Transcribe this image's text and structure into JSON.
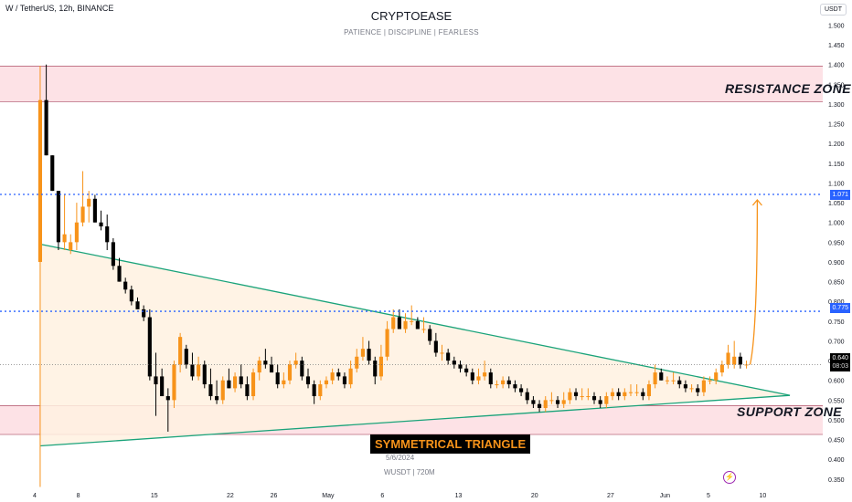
{
  "header": {
    "symbol": "W / TetherUS, 12h, BINANCE",
    "title": "CRYPTOEASE",
    "subtitle": "PATIENCE | DISCIPLINE | FEARLESS",
    "currency": "USDT"
  },
  "watermark": {
    "pattern": "SYMMETRICAL TRIANGLE",
    "date": "5/6/2024",
    "info": "WUSDT | 720M"
  },
  "zones": {
    "resistance_label": "RESISTANCE ZONE",
    "support_label": "SUPPORT ZONE"
  },
  "price_tags": {
    "target": "1.071",
    "breakout": "0.775",
    "current": "0.640",
    "countdown": "08:03"
  },
  "icons": {
    "flash": "lightning-icon"
  },
  "colors": {
    "bull": "#f7931a",
    "bear": "#000000",
    "zone_fill": "#fde2e6",
    "triangle_line": "#1aa37a",
    "triangle_fill": "#fff1e0",
    "level_line": "#2962ff",
    "arrow": "#f7931a"
  },
  "chart_data": {
    "type": "candlestick",
    "title": "CRYPTOEASE",
    "x_ticks": [
      "4",
      "8",
      "15",
      "22",
      "26",
      "May",
      "6",
      "13",
      "20",
      "27",
      "Jun",
      "5",
      "10"
    ],
    "x_tick_days": [
      0,
      4,
      11,
      18,
      22,
      27,
      32,
      39,
      46,
      53,
      58,
      62,
      67
    ],
    "x_range_days": [
      0,
      70
    ],
    "y_ticks": [
      0.35,
      0.4,
      0.45,
      0.5,
      0.55,
      0.6,
      0.65,
      0.7,
      0.75,
      0.8,
      0.85,
      0.9,
      0.95,
      1.0,
      1.05,
      1.1,
      1.15,
      1.2,
      1.25,
      1.3,
      1.35,
      1.4,
      1.45,
      1.5
    ],
    "ylim": [
      0.315,
      1.545
    ],
    "resistance_zone": [
      1.306,
      1.396
    ],
    "support_zone": [
      0.463,
      0.536
    ],
    "levels": [
      1.071,
      0.775
    ],
    "current_price": 0.64,
    "triangle": {
      "upper": [
        [
          0.5,
          0.945
        ],
        [
          69.5,
          0.562
        ]
      ],
      "lower": [
        [
          0.5,
          0.434
        ],
        [
          69.5,
          0.562
        ]
      ]
    },
    "projection_target": 1.071,
    "candles": [
      [
        0.9,
        1.31,
        1.397,
        0.33,
        1.31
      ],
      [
        1.31,
        1.31,
        1.4,
        1.17,
        1.17
      ],
      [
        1.17,
        1.17,
        1.17,
        1.08,
        1.08
      ],
      [
        1.08,
        1.08,
        1.08,
        0.93,
        0.95
      ],
      [
        0.95,
        1.07,
        1.07,
        0.93,
        0.97
      ],
      [
        0.93,
        0.93,
        0.97,
        0.92,
        0.95
      ],
      [
        0.95,
        1.03,
        1.05,
        0.93,
        1.0
      ],
      [
        1.0,
        1.06,
        1.13,
        0.99,
        1.04
      ],
      [
        1.04,
        1.07,
        1.08,
        1.0,
        1.06
      ],
      [
        1.06,
        1.06,
        1.07,
        1.0,
        1.0
      ],
      [
        1.0,
        1.02,
        1.03,
        0.98,
        0.99
      ],
      [
        0.99,
        0.99,
        1.02,
        0.93,
        0.95
      ],
      [
        0.95,
        0.95,
        0.96,
        0.88,
        0.89
      ],
      [
        0.89,
        0.89,
        0.91,
        0.85,
        0.85
      ],
      [
        0.85,
        0.85,
        0.86,
        0.82,
        0.83
      ],
      [
        0.83,
        0.83,
        0.84,
        0.79,
        0.8
      ],
      [
        0.8,
        0.8,
        0.81,
        0.78,
        0.78
      ],
      [
        0.78,
        0.78,
        0.79,
        0.75,
        0.76
      ],
      [
        0.76,
        0.76,
        0.78,
        0.6,
        0.61
      ],
      [
        0.61,
        0.62,
        0.67,
        0.51,
        0.59
      ],
      [
        0.61,
        0.61,
        0.63,
        0.56,
        0.56
      ],
      [
        0.56,
        0.56,
        0.58,
        0.47,
        0.55
      ],
      [
        0.55,
        0.64,
        0.65,
        0.53,
        0.64
      ],
      [
        0.64,
        0.71,
        0.72,
        0.62,
        0.71
      ],
      [
        0.68,
        0.68,
        0.69,
        0.63,
        0.64
      ],
      [
        0.64,
        0.66,
        0.67,
        0.6,
        0.61
      ],
      [
        0.61,
        0.61,
        0.66,
        0.6,
        0.64
      ],
      [
        0.64,
        0.64,
        0.65,
        0.58,
        0.59
      ],
      [
        0.59,
        0.62,
        0.63,
        0.55,
        0.56
      ],
      [
        0.56,
        0.58,
        0.6,
        0.54,
        0.55
      ],
      [
        0.55,
        0.6,
        0.61,
        0.54,
        0.6
      ],
      [
        0.6,
        0.61,
        0.63,
        0.58,
        0.58
      ],
      [
        0.58,
        0.61,
        0.62,
        0.57,
        0.61
      ],
      [
        0.61,
        0.63,
        0.64,
        0.58,
        0.59
      ],
      [
        0.59,
        0.59,
        0.61,
        0.55,
        0.56
      ],
      [
        0.56,
        0.62,
        0.63,
        0.55,
        0.62
      ],
      [
        0.62,
        0.65,
        0.66,
        0.6,
        0.65
      ],
      [
        0.65,
        0.67,
        0.68,
        0.63,
        0.64
      ],
      [
        0.64,
        0.65,
        0.66,
        0.62,
        0.62
      ],
      [
        0.62,
        0.62,
        0.64,
        0.58,
        0.59
      ],
      [
        0.59,
        0.61,
        0.62,
        0.58,
        0.6
      ],
      [
        0.6,
        0.64,
        0.65,
        0.59,
        0.64
      ],
      [
        0.64,
        0.66,
        0.67,
        0.63,
        0.65
      ],
      [
        0.65,
        0.65,
        0.66,
        0.6,
        0.61
      ],
      [
        0.61,
        0.61,
        0.63,
        0.58,
        0.59
      ],
      [
        0.59,
        0.59,
        0.6,
        0.54,
        0.56
      ],
      [
        0.56,
        0.59,
        0.6,
        0.55,
        0.59
      ],
      [
        0.59,
        0.6,
        0.61,
        0.58,
        0.6
      ],
      [
        0.6,
        0.62,
        0.63,
        0.59,
        0.62
      ],
      [
        0.62,
        0.62,
        0.63,
        0.6,
        0.61
      ],
      [
        0.61,
        0.61,
        0.62,
        0.58,
        0.59
      ],
      [
        0.59,
        0.64,
        0.65,
        0.58,
        0.63
      ],
      [
        0.63,
        0.67,
        0.68,
        0.62,
        0.66
      ],
      [
        0.66,
        0.7,
        0.71,
        0.65,
        0.68
      ],
      [
        0.68,
        0.68,
        0.7,
        0.64,
        0.65
      ],
      [
        0.65,
        0.65,
        0.66,
        0.59,
        0.61
      ],
      [
        0.61,
        0.68,
        0.69,
        0.6,
        0.66
      ],
      [
        0.66,
        0.74,
        0.75,
        0.65,
        0.73
      ],
      [
        0.73,
        0.77,
        0.78,
        0.72,
        0.76
      ],
      [
        0.76,
        0.78,
        0.78,
        0.73,
        0.73
      ],
      [
        0.73,
        0.76,
        0.77,
        0.72,
        0.75
      ],
      [
        0.75,
        0.78,
        0.79,
        0.74,
        0.75
      ],
      [
        0.75,
        0.75,
        0.76,
        0.73,
        0.73
      ],
      [
        0.73,
        0.74,
        0.76,
        0.72,
        0.73
      ],
      [
        0.73,
        0.73,
        0.74,
        0.69,
        0.7
      ],
      [
        0.7,
        0.7,
        0.72,
        0.66,
        0.67
      ],
      [
        0.67,
        0.67,
        0.69,
        0.65,
        0.67
      ],
      [
        0.67,
        0.67,
        0.68,
        0.64,
        0.65
      ],
      [
        0.65,
        0.65,
        0.66,
        0.63,
        0.64
      ],
      [
        0.64,
        0.64,
        0.65,
        0.62,
        0.63
      ],
      [
        0.63,
        0.63,
        0.64,
        0.61,
        0.62
      ],
      [
        0.62,
        0.62,
        0.63,
        0.59,
        0.6
      ],
      [
        0.6,
        0.62,
        0.63,
        0.59,
        0.61
      ],
      [
        0.61,
        0.64,
        0.65,
        0.6,
        0.62
      ],
      [
        0.62,
        0.62,
        0.63,
        0.58,
        0.59
      ],
      [
        0.59,
        0.59,
        0.6,
        0.58,
        0.59
      ],
      [
        0.59,
        0.6,
        0.61,
        0.58,
        0.6
      ],
      [
        0.6,
        0.6,
        0.61,
        0.58,
        0.59
      ],
      [
        0.59,
        0.59,
        0.6,
        0.57,
        0.58
      ],
      [
        0.58,
        0.58,
        0.59,
        0.56,
        0.57
      ],
      [
        0.57,
        0.57,
        0.58,
        0.54,
        0.55
      ],
      [
        0.55,
        0.55,
        0.56,
        0.53,
        0.54
      ],
      [
        0.54,
        0.54,
        0.55,
        0.52,
        0.53
      ],
      [
        0.53,
        0.55,
        0.56,
        0.52,
        0.55
      ],
      [
        0.55,
        0.56,
        0.57,
        0.54,
        0.55
      ],
      [
        0.55,
        0.55,
        0.56,
        0.53,
        0.54
      ],
      [
        0.54,
        0.56,
        0.57,
        0.53,
        0.55
      ],
      [
        0.55,
        0.57,
        0.58,
        0.54,
        0.57
      ],
      [
        0.57,
        0.57,
        0.58,
        0.55,
        0.56
      ],
      [
        0.56,
        0.57,
        0.58,
        0.55,
        0.56
      ],
      [
        0.56,
        0.57,
        0.58,
        0.55,
        0.56
      ],
      [
        0.56,
        0.56,
        0.57,
        0.54,
        0.55
      ],
      [
        0.55,
        0.55,
        0.56,
        0.53,
        0.54
      ],
      [
        0.54,
        0.56,
        0.57,
        0.53,
        0.56
      ],
      [
        0.56,
        0.58,
        0.58,
        0.55,
        0.57
      ],
      [
        0.57,
        0.57,
        0.58,
        0.55,
        0.56
      ],
      [
        0.56,
        0.57,
        0.58,
        0.55,
        0.57
      ],
      [
        0.57,
        0.58,
        0.59,
        0.56,
        0.57
      ],
      [
        0.57,
        0.58,
        0.59,
        0.56,
        0.57
      ],
      [
        0.57,
        0.57,
        0.58,
        0.55,
        0.56
      ],
      [
        0.56,
        0.59,
        0.6,
        0.55,
        0.59
      ],
      [
        0.59,
        0.63,
        0.64,
        0.58,
        0.62
      ],
      [
        0.62,
        0.62,
        0.63,
        0.6,
        0.6
      ],
      [
        0.6,
        0.6,
        0.61,
        0.59,
        0.6
      ],
      [
        0.6,
        0.61,
        0.62,
        0.59,
        0.6
      ],
      [
        0.6,
        0.6,
        0.61,
        0.58,
        0.59
      ],
      [
        0.59,
        0.59,
        0.6,
        0.57,
        0.58
      ],
      [
        0.58,
        0.58,
        0.59,
        0.57,
        0.58
      ],
      [
        0.58,
        0.58,
        0.59,
        0.56,
        0.57
      ],
      [
        0.57,
        0.6,
        0.61,
        0.56,
        0.6
      ],
      [
        0.6,
        0.6,
        0.61,
        0.59,
        0.6
      ],
      [
        0.6,
        0.62,
        0.63,
        0.59,
        0.62
      ],
      [
        0.62,
        0.64,
        0.65,
        0.61,
        0.64
      ],
      [
        0.64,
        0.68,
        0.69,
        0.63,
        0.67
      ],
      [
        0.64,
        0.67,
        0.7,
        0.63,
        0.66
      ],
      [
        0.66,
        0.66,
        0.67,
        0.63,
        0.64
      ],
      [
        0.64,
        0.64,
        0.65,
        0.63,
        0.64
      ]
    ]
  }
}
